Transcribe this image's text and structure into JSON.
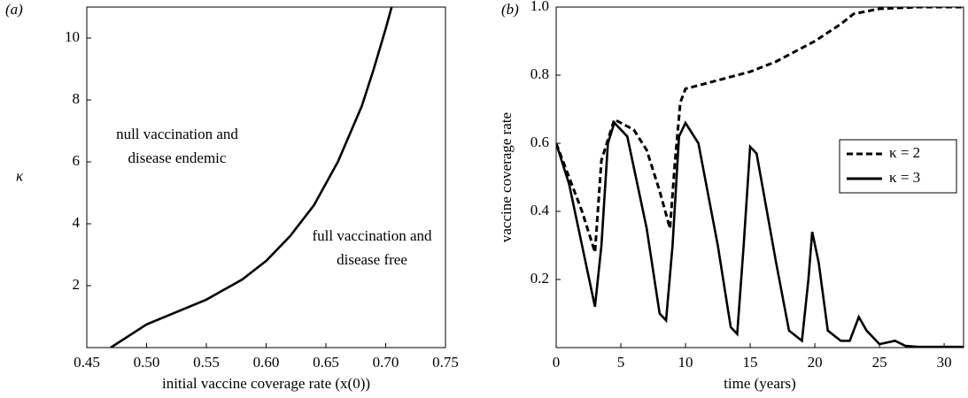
{
  "chart_data": [
    {
      "type": "line",
      "title": "(a)",
      "x_label": "initial vaccine coverage rate (x(0))",
      "y_label": "κ",
      "x": [
        0.47,
        0.5,
        0.55,
        0.58,
        0.6,
        0.62,
        0.64,
        0.66,
        0.68,
        0.69,
        0.7,
        0.705
      ],
      "values": [
        0,
        0.75,
        1.55,
        2.2,
        2.8,
        3.6,
        4.6,
        6.0,
        7.8,
        9.0,
        10.3,
        11
      ],
      "color": "#000000",
      "xlim": [
        0.45,
        0.75
      ],
      "ylim": [
        0,
        11
      ],
      "xticks": [
        0.45,
        {
          "value": 0.5,
          "label": "0.50"
        },
        0.55,
        {
          "value": 0.6,
          "label": "0.60"
        },
        0.65,
        {
          "value": 0.7,
          "label": "0.70"
        },
        0.75
      ],
      "yticks": [
        2,
        4,
        6,
        8,
        10
      ],
      "annotations": [
        "null vaccination and",
        "disease endemic",
        "full vaccination and",
        "disease free"
      ]
    },
    {
      "type": "line",
      "title": "(b)",
      "x_label": "time (years)",
      "y_label": "vaccine coverage rate",
      "xlim": [
        0,
        31.5
      ],
      "ylim": [
        0,
        1
      ],
      "xticks": [
        0,
        5,
        10,
        15,
        20,
        25,
        30
      ],
      "yticks": [
        0.2,
        0.4,
        0.6,
        0.8,
        {
          "value": 1,
          "label": "1.0"
        }
      ],
      "legend": "right",
      "series": [
        {
          "name": "κ = 2",
          "color": "#000000",
          "linestyle": "dashed",
          "x": [
            0,
            1,
            2,
            3,
            3.5,
            4.5,
            6,
            7,
            8,
            8.8,
            9.2,
            9.6,
            10,
            12,
            15,
            17,
            20,
            22,
            23,
            25,
            28,
            31.5
          ],
          "values": [
            0.6,
            0.5,
            0.4,
            0.28,
            0.55,
            0.67,
            0.64,
            0.58,
            0.46,
            0.35,
            0.55,
            0.72,
            0.76,
            0.78,
            0.81,
            0.84,
            0.9,
            0.95,
            0.98,
            0.995,
            1.0,
            1.0
          ]
        },
        {
          "name": "κ = 3",
          "color": "#000000",
          "linestyle": "solid",
          "x": [
            0,
            1,
            2,
            3,
            3.5,
            4,
            4.5,
            5.5,
            7,
            8,
            8.5,
            9,
            9.5,
            10,
            11,
            12.5,
            13.5,
            14,
            14.5,
            15,
            15.5,
            17,
            18,
            19,
            19.5,
            19.8,
            20.3,
            21,
            22,
            22.7,
            23.4,
            24,
            25,
            26.2,
            27,
            28,
            31.5
          ],
          "values": [
            0.6,
            0.48,
            0.3,
            0.12,
            0.3,
            0.6,
            0.66,
            0.62,
            0.35,
            0.1,
            0.08,
            0.3,
            0.62,
            0.66,
            0.6,
            0.3,
            0.06,
            0.04,
            0.3,
            0.59,
            0.57,
            0.25,
            0.05,
            0.02,
            0.2,
            0.34,
            0.25,
            0.05,
            0.02,
            0.02,
            0.09,
            0.05,
            0.01,
            0.02,
            0.005,
            0.002,
            0.002
          ]
        }
      ]
    }
  ]
}
